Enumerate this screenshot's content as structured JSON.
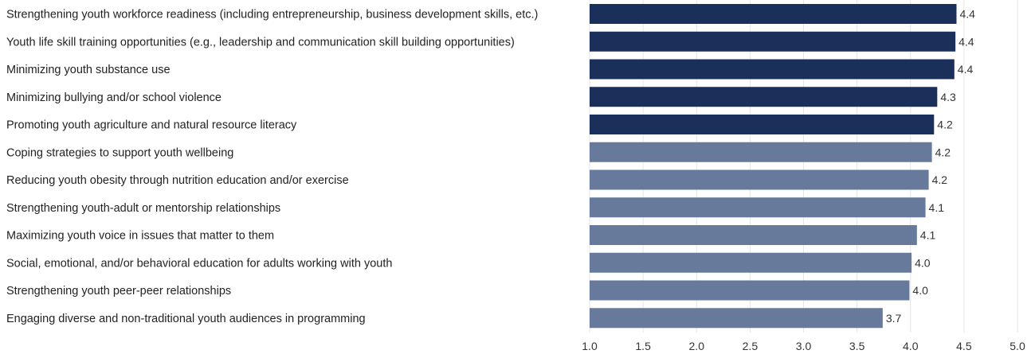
{
  "chart_data": {
    "type": "bar",
    "orientation": "horizontal",
    "title": "",
    "xlabel": "",
    "ylabel": "",
    "xlim": [
      1.0,
      5.0
    ],
    "x_ticks": [
      "1.0",
      "1.5",
      "2.0",
      "2.5",
      "3.0",
      "3.5",
      "4.0",
      "4.5",
      "5.0"
    ],
    "x_tick_values": [
      1.0,
      1.5,
      2.0,
      2.5,
      3.0,
      3.5,
      4.0,
      4.5,
      5.0
    ],
    "grid": true,
    "colors": {
      "highlight": "#1b2f5b",
      "normal": "#687a9b"
    },
    "categories": [
      "Strengthening youth workforce readiness (including entrepreneurship, business development skills, etc.)",
      "Youth life skill training opportunities (e.g., leadership and communication skill building opportunities)",
      "Minimizing youth substance use",
      "Minimizing bullying and/or school violence",
      "Promoting youth agriculture and natural resource literacy",
      "Coping strategies to support youth wellbeing",
      "Reducing youth obesity through nutrition education and/or exercise",
      "Strengthening youth-adult or mentorship relationships",
      "Maximizing youth voice in issues that matter to them",
      "Social, emotional, and/or behavioral education for adults working with youth",
      "Strengthening youth peer-peer relationships",
      "Engaging diverse and non-traditional youth audiences in programming"
    ],
    "values": [
      4.43,
      4.42,
      4.41,
      4.25,
      4.22,
      4.2,
      4.17,
      4.14,
      4.06,
      4.01,
      3.99,
      3.74
    ],
    "value_labels": [
      "4.4",
      "4.4",
      "4.4",
      "4.3",
      "4.2",
      "4.2",
      "4.2",
      "4.1",
      "4.1",
      "4.0",
      "4.0",
      "3.7"
    ],
    "highlighted": [
      true,
      true,
      true,
      true,
      true,
      false,
      false,
      false,
      false,
      false,
      false,
      false
    ]
  }
}
